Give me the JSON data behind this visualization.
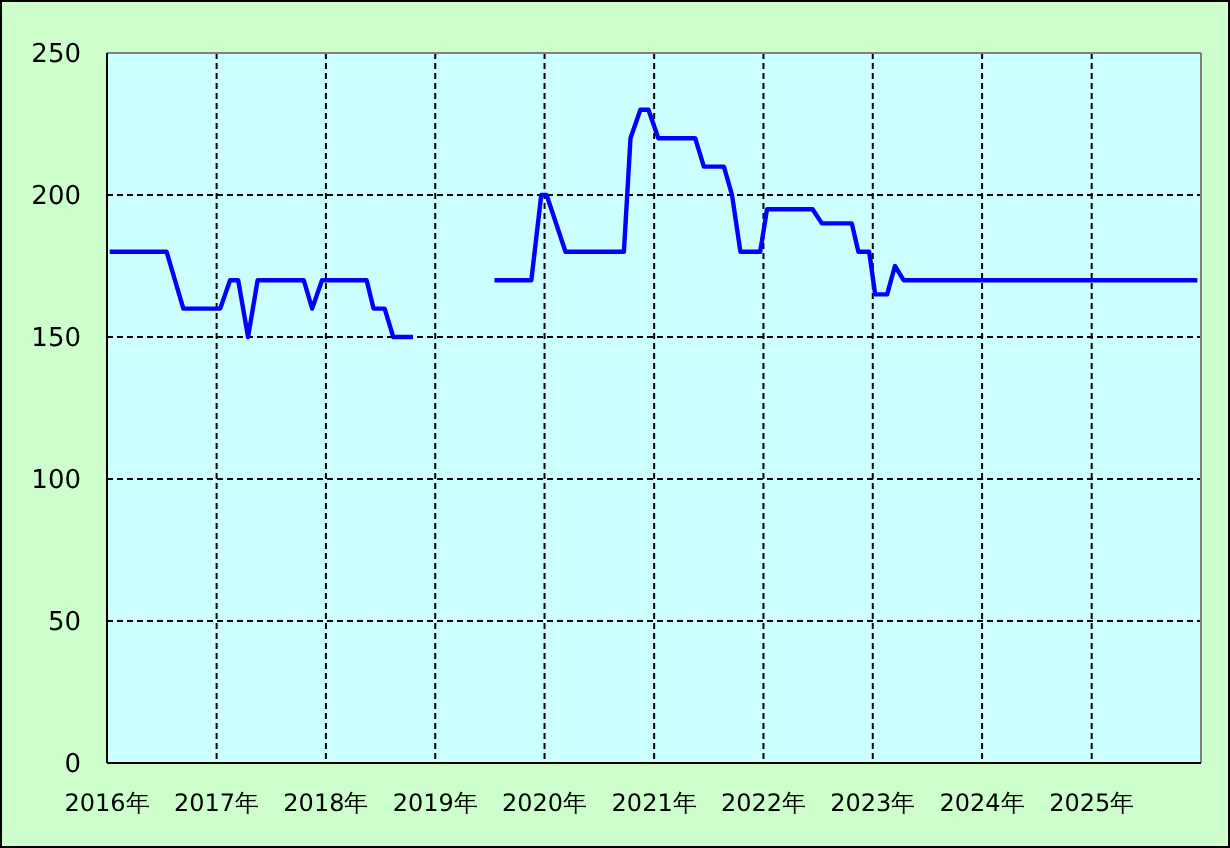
{
  "chart_data": {
    "type": "line",
    "series": [
      {
        "color": "#0000ff",
        "x": [
          "2016-01-10",
          "2016-07-18",
          "2016-09-12",
          "2017-01-13",
          "2017-02-15",
          "2017-03-14",
          "2017-04-16",
          "2017-05-18",
          "2017-10-19",
          "2017-11-16",
          "2017-12-19",
          "2018-05-17",
          "2018-06-09",
          "2018-07-16",
          "2018-08-14",
          "2018-10-19"
        ],
        "values": [
          180,
          180,
          160,
          160,
          170,
          170,
          150,
          170,
          170,
          160,
          170,
          170,
          160,
          160,
          150,
          150
        ]
      },
      {
        "color": "#0000ff",
        "x": [
          "2019-07-18",
          "2019-11-18",
          "2019-12-21",
          "2020-01-08",
          "2020-03-11",
          "2020-09-22",
          "2020-10-14",
          "2020-11-16",
          "2020-12-13",
          "2021-01-15",
          "2021-05-18",
          "2021-06-16",
          "2021-08-22",
          "2021-09-18",
          "2021-10-16",
          "2021-12-21",
          "2022-01-13",
          "2022-06-14",
          "2022-07-15",
          "2022-10-23",
          "2022-11-14",
          "2022-12-20",
          "2023-01-09",
          "2023-02-18",
          "2023-03-16",
          "2023-04-14",
          "2025-12-20"
        ],
        "values": [
          170,
          170,
          200,
          200,
          180,
          180,
          220,
          230,
          230,
          220,
          220,
          210,
          210,
          200,
          180,
          180,
          195,
          195,
          190,
          190,
          180,
          180,
          165,
          165,
          175,
          170,
          170
        ]
      }
    ],
    "xlim": [
      "2016",
      "2026"
    ],
    "xticks": [
      {
        "value": "2016",
        "label": "2016年"
      },
      {
        "value": "2017",
        "label": "2017年"
      },
      {
        "value": "2018",
        "label": "2018年"
      },
      {
        "value": "2019",
        "label": "2019年"
      },
      {
        "value": "2020",
        "label": "2020年"
      },
      {
        "value": "2021",
        "label": "2021年"
      },
      {
        "value": "2022",
        "label": "2022年"
      },
      {
        "value": "2023",
        "label": "2023年"
      },
      {
        "value": "2024",
        "label": "2024年"
      },
      {
        "value": "2025",
        "label": "2025年"
      }
    ],
    "ylim": [
      0,
      250
    ],
    "yticks": [
      0,
      50,
      100,
      150,
      200,
      250
    ],
    "grid": true
  }
}
